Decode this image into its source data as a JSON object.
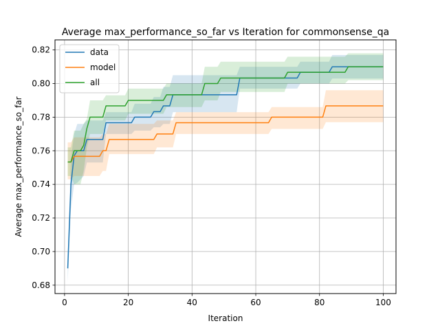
{
  "chart_data": {
    "type": "line",
    "title": "Average max_performance_so_far vs Iteration for commonsense_qa",
    "xlabel": "Iteration",
    "ylabel": "Average max_performance_so_far",
    "xlim": [
      -3,
      104
    ],
    "ylim": [
      0.675,
      0.826
    ],
    "x_ticks": [
      0,
      20,
      40,
      60,
      80,
      100
    ],
    "y_ticks": [
      0.68,
      0.7,
      0.72,
      0.74,
      0.76,
      0.78,
      0.8,
      0.82
    ],
    "x_tick_labels": [
      "0",
      "20",
      "40",
      "60",
      "80",
      "100"
    ],
    "y_tick_labels": [
      "0.68",
      "0.70",
      "0.72",
      "0.74",
      "0.76",
      "0.78",
      "0.80",
      "0.82"
    ],
    "grid": true,
    "legend_position": "top-left",
    "series": [
      {
        "name": "data",
        "color": "#1f77b4",
        "points": [
          [
            1,
            0.69
          ],
          [
            2,
            0.74
          ],
          [
            3,
            0.757
          ],
          [
            4,
            0.76
          ],
          [
            6,
            0.76
          ],
          [
            7,
            0.7667
          ],
          [
            12,
            0.7667
          ],
          [
            13,
            0.7767
          ],
          [
            21,
            0.7767
          ],
          [
            22,
            0.78
          ],
          [
            27,
            0.78
          ],
          [
            28,
            0.7833
          ],
          [
            30,
            0.7833
          ],
          [
            31,
            0.7867
          ],
          [
            33,
            0.7867
          ],
          [
            34,
            0.7933
          ],
          [
            54,
            0.7933
          ],
          [
            55,
            0.8033
          ],
          [
            73,
            0.8033
          ],
          [
            74,
            0.8067
          ],
          [
            83,
            0.8067
          ],
          [
            84,
            0.81
          ],
          [
            100,
            0.81
          ]
        ],
        "band": [
          [
            1,
            0.682,
            0.698
          ],
          [
            2,
            0.725,
            0.755
          ],
          [
            3,
            0.74,
            0.77
          ],
          [
            4,
            0.741,
            0.776
          ],
          [
            6,
            0.745,
            0.776
          ],
          [
            7,
            0.753,
            0.778
          ],
          [
            12,
            0.753,
            0.778
          ],
          [
            13,
            0.77,
            0.783
          ],
          [
            21,
            0.77,
            0.783
          ],
          [
            22,
            0.772,
            0.788
          ],
          [
            27,
            0.772,
            0.788
          ],
          [
            28,
            0.774,
            0.792
          ],
          [
            30,
            0.774,
            0.792
          ],
          [
            31,
            0.776,
            0.798
          ],
          [
            33,
            0.776,
            0.798
          ],
          [
            34,
            0.783,
            0.805
          ],
          [
            54,
            0.783,
            0.805
          ],
          [
            55,
            0.797,
            0.81
          ],
          [
            73,
            0.797,
            0.81
          ],
          [
            74,
            0.8,
            0.813
          ],
          [
            83,
            0.8,
            0.813
          ],
          [
            84,
            0.803,
            0.817
          ],
          [
            100,
            0.803,
            0.817
          ]
        ]
      },
      {
        "name": "model",
        "color": "#ff7f0e",
        "points": [
          [
            1,
            0.7533
          ],
          [
            2,
            0.7533
          ],
          [
            3,
            0.7567
          ],
          [
            11,
            0.7567
          ],
          [
            12,
            0.76
          ],
          [
            13,
            0.76
          ],
          [
            14,
            0.7667
          ],
          [
            28,
            0.7667
          ],
          [
            29,
            0.77
          ],
          [
            34,
            0.77
          ],
          [
            35,
            0.7767
          ],
          [
            64,
            0.7767
          ],
          [
            65,
            0.78
          ],
          [
            81,
            0.78
          ],
          [
            82,
            0.7867
          ],
          [
            100,
            0.7867
          ]
        ],
        "band": [
          [
            1,
            0.743,
            0.765
          ],
          [
            2,
            0.743,
            0.765
          ],
          [
            3,
            0.745,
            0.768
          ],
          [
            11,
            0.745,
            0.768
          ],
          [
            12,
            0.748,
            0.77
          ],
          [
            13,
            0.748,
            0.77
          ],
          [
            14,
            0.758,
            0.776
          ],
          [
            28,
            0.758,
            0.776
          ],
          [
            29,
            0.762,
            0.778
          ],
          [
            34,
            0.762,
            0.778
          ],
          [
            35,
            0.77,
            0.783
          ],
          [
            64,
            0.77,
            0.783
          ],
          [
            65,
            0.773,
            0.786
          ],
          [
            81,
            0.773,
            0.786
          ],
          [
            82,
            0.777,
            0.796
          ],
          [
            100,
            0.777,
            0.796
          ]
        ]
      },
      {
        "name": "all",
        "color": "#2ca02c",
        "points": [
          [
            1,
            0.7533
          ],
          [
            2,
            0.7533
          ],
          [
            3,
            0.76
          ],
          [
            5,
            0.76
          ],
          [
            6,
            0.7633
          ],
          [
            7,
            0.7733
          ],
          [
            8,
            0.78
          ],
          [
            12,
            0.78
          ],
          [
            13,
            0.7867
          ],
          [
            19,
            0.7867
          ],
          [
            20,
            0.79
          ],
          [
            31,
            0.79
          ],
          [
            32,
            0.7933
          ],
          [
            43,
            0.7933
          ],
          [
            44,
            0.8
          ],
          [
            48,
            0.8
          ],
          [
            49,
            0.8033
          ],
          [
            69,
            0.8033
          ],
          [
            70,
            0.8067
          ],
          [
            88,
            0.8067
          ],
          [
            89,
            0.81
          ],
          [
            100,
            0.81
          ]
        ],
        "band": [
          [
            1,
            0.745,
            0.762
          ],
          [
            2,
            0.745,
            0.762
          ],
          [
            3,
            0.74,
            0.772
          ],
          [
            5,
            0.74,
            0.772
          ],
          [
            6,
            0.748,
            0.776
          ],
          [
            7,
            0.762,
            0.779
          ],
          [
            8,
            0.77,
            0.79
          ],
          [
            12,
            0.77,
            0.79
          ],
          [
            13,
            0.778,
            0.793
          ],
          [
            19,
            0.778,
            0.793
          ],
          [
            20,
            0.782,
            0.797
          ],
          [
            31,
            0.782,
            0.797
          ],
          [
            32,
            0.786,
            0.8
          ],
          [
            43,
            0.786,
            0.8
          ],
          [
            44,
            0.79,
            0.81
          ],
          [
            48,
            0.79,
            0.81
          ],
          [
            49,
            0.795,
            0.813
          ],
          [
            69,
            0.795,
            0.813
          ],
          [
            70,
            0.8,
            0.816
          ],
          [
            88,
            0.8,
            0.816
          ],
          [
            89,
            0.802,
            0.818
          ],
          [
            100,
            0.802,
            0.818
          ]
        ]
      }
    ]
  }
}
